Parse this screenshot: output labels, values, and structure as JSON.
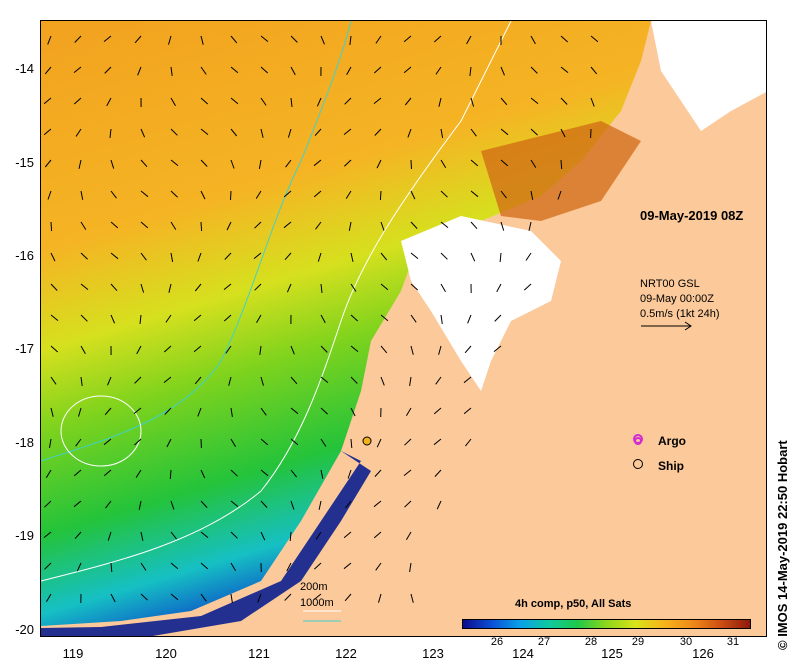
{
  "title": "09-May-2019 08Z",
  "current_info": {
    "line1": "NRT00 GSL",
    "line2": "09-May 00:00Z",
    "line3": "0.5m/s (1kt 24h)"
  },
  "legend": {
    "argo": "Argo",
    "ship": "Ship",
    "depth_200": "200m",
    "depth_1000": "1000m"
  },
  "colorbar": {
    "title": "4h comp, p50, All Sats",
    "ticks": [
      "26",
      "27",
      "28",
      "29",
      "30",
      "31"
    ],
    "colors": {
      "low": "#0c0c8f",
      "mid": "#1fc94a",
      "high": "#8c1a0c"
    }
  },
  "axes": {
    "x_ticks": [
      "119",
      "120",
      "121",
      "122",
      "123",
      "124",
      "125",
      "126"
    ],
    "y_ticks": [
      "-14",
      "-15",
      "-16",
      "-17",
      "-18",
      "-19",
      "-20"
    ]
  },
  "credit": "© IMOS 14-May-2019 22:50 Hobart",
  "colors": {
    "land": "#fbc99a",
    "no_data": "#ffffff",
    "contour_200m": "#3fd1cf",
    "contour_1000m": "#ffffff",
    "argo": "#d42ad4",
    "ship": "#f2b21a"
  }
}
